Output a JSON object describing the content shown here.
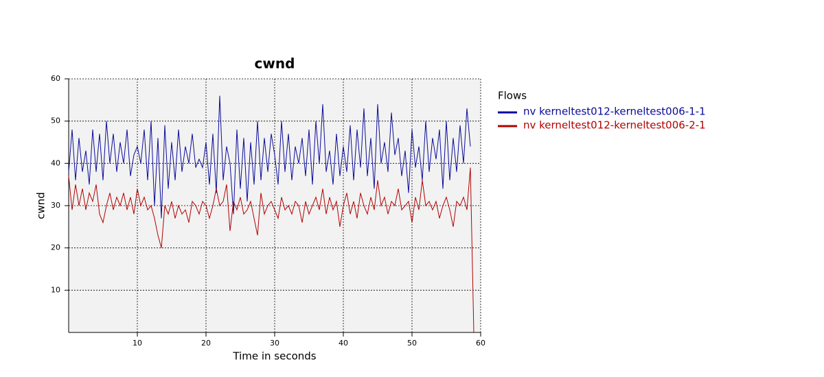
{
  "chart_data": {
    "type": "line",
    "title": "cwnd",
    "xlabel": "Time in seconds",
    "ylabel": "cwnd",
    "legend_title": "Flows",
    "legend": "right",
    "grid": true,
    "xlim": [
      0,
      60
    ],
    "ylim": [
      0,
      60
    ],
    "xticks": [
      10,
      20,
      30,
      40,
      50,
      60
    ],
    "yticks": [
      10,
      20,
      30,
      40,
      50,
      60
    ],
    "x": [
      0,
      0.5,
      1,
      1.5,
      2,
      2.5,
      3,
      3.5,
      4,
      4.5,
      5,
      5.5,
      6,
      6.5,
      7,
      7.5,
      8,
      8.5,
      9,
      9.5,
      10,
      10.5,
      11,
      11.5,
      12,
      12.5,
      13,
      13.5,
      14,
      14.5,
      15,
      15.5,
      16,
      16.5,
      17,
      17.5,
      18,
      18.5,
      19,
      19.5,
      20,
      20.5,
      21,
      21.5,
      22,
      22.5,
      23,
      23.5,
      24,
      24.5,
      25,
      25.5,
      26,
      26.5,
      27,
      27.5,
      28,
      28.5,
      29,
      29.5,
      30,
      30.5,
      31,
      31.5,
      32,
      32.5,
      33,
      33.5,
      34,
      34.5,
      35,
      35.5,
      36,
      36.5,
      37,
      37.5,
      38,
      38.5,
      39,
      39.5,
      40,
      40.5,
      41,
      41.5,
      42,
      42.5,
      43,
      43.5,
      44,
      44.5,
      45,
      45.5,
      46,
      46.5,
      47,
      47.5,
      48,
      48.5,
      49,
      49.5,
      50,
      50.5,
      51,
      51.5,
      52,
      52.5,
      53,
      53.5,
      54,
      54.5,
      55,
      55.5,
      56,
      56.5,
      57,
      57.5,
      58,
      58.5,
      59
    ],
    "series": [
      {
        "name": "nv kerneltest012-kerneltest006-1-1",
        "color": "#0a0a9a",
        "values": [
          38,
          48,
          36,
          46,
          38,
          43,
          35,
          48,
          38,
          47,
          36,
          50,
          40,
          47,
          38,
          45,
          40,
          48,
          37,
          42,
          44,
          40,
          48,
          36,
          50,
          30,
          46,
          27,
          49,
          34,
          45,
          36,
          48,
          38,
          44,
          40,
          47,
          39,
          41,
          39,
          45,
          35,
          47,
          33,
          56,
          36,
          44,
          40,
          28,
          48,
          34,
          46,
          31,
          45,
          35,
          50,
          36,
          46,
          38,
          47,
          42,
          35,
          50,
          38,
          47,
          36,
          44,
          40,
          46,
          37,
          48,
          35,
          50,
          40,
          54,
          38,
          43,
          35,
          47,
          37,
          44,
          38,
          49,
          36,
          48,
          39,
          53,
          37,
          46,
          34,
          54,
          40,
          45,
          38,
          52,
          42,
          46,
          37,
          43,
          33,
          48,
          39,
          44,
          36,
          50,
          38,
          46,
          41,
          48,
          34,
          50,
          36,
          46,
          38,
          49,
          40,
          53,
          44,
          null
        ]
      },
      {
        "name": "nv kerneltest012-kerneltest006-2-1",
        "color": "#b20000",
        "values": [
          37,
          29,
          35,
          30,
          34,
          29,
          33,
          31,
          35,
          28,
          26,
          30,
          33,
          29,
          32,
          30,
          33,
          29,
          32,
          28,
          34,
          30,
          32,
          29,
          30,
          27,
          23,
          20,
          30,
          28,
          31,
          27,
          30,
          28,
          29,
          26,
          31,
          30,
          28,
          31,
          30,
          27,
          30,
          34,
          30,
          31,
          35,
          24,
          31,
          29,
          32,
          28,
          29,
          31,
          27,
          23,
          33,
          28,
          30,
          31,
          29,
          27,
          32,
          29,
          30,
          28,
          31,
          30,
          26,
          31,
          28,
          30,
          32,
          29,
          34,
          28,
          32,
          29,
          31,
          25,
          30,
          33,
          28,
          31,
          27,
          33,
          30,
          28,
          32,
          29,
          36,
          30,
          32,
          28,
          31,
          30,
          34,
          29,
          30,
          31,
          26,
          32,
          29,
          36,
          30,
          31,
          29,
          31,
          27,
          30,
          32,
          29,
          25,
          31,
          30,
          32,
          29,
          39,
          0
        ]
      }
    ]
  }
}
